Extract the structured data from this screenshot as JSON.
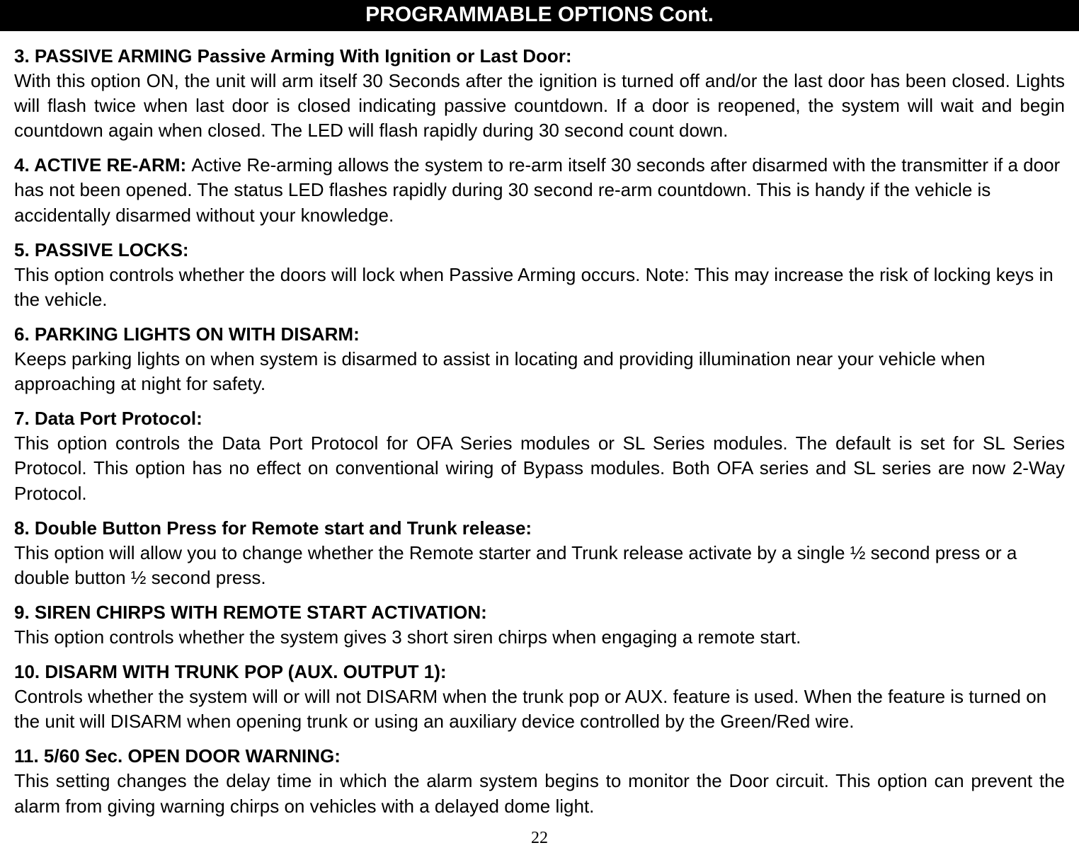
{
  "header": "PROGRAMMABLE OPTIONS Cont.",
  "page_number": "22",
  "sections": [
    {
      "heading": "3. PASSIVE ARMING Passive Arming With Ignition or Last Door:",
      "body": "With this option ON, the unit will arm itself 30 Seconds after the ignition is turned off and/or the last door has been closed.  Lights will flash twice when last door is closed indicating passive countdown.  If a door is reopened, the system will wait and begin countdown again when closed. The LED will flash rapidly during 30 second count down.",
      "justify": true,
      "inline_body": false
    },
    {
      "heading": "4. ACTIVE RE-ARM: ",
      "body": "Active Re-arming allows the system to re-arm itself 30 seconds after disarmed with the transmitter if a door has not been opened. The status LED flashes rapidly during 30 second re-arm countdown. This is handy if the vehicle is accidentally disarmed without your knowledge.",
      "justify": false,
      "inline_body": true
    },
    {
      "heading": "5. PASSIVE LOCKS:",
      "body": "This option controls whether the doors will lock when Passive Arming occurs.  Note: This may increase the risk of locking keys in the vehicle.",
      "justify": false,
      "inline_body": false
    },
    {
      "heading": "6. PARKING LIGHTS ON WITH DISARM:",
      "body": "Keeps parking lights on when system is disarmed to assist in locating and providing illumination near your vehicle when approaching at night for safety.",
      "justify": false,
      "inline_body": false
    },
    {
      "heading": "7. Data Port Protocol:",
      "body": "This option controls the Data Port Protocol for OFA Series modules or SL Series modules. The default is set for SL Series Protocol. This option has no effect on conventional wiring of Bypass modules. Both OFA series and SL series are now 2-Way Protocol.",
      "justify": true,
      "inline_body": false
    },
    {
      "heading": "8. Double Button Press for Remote start and Trunk release:",
      "body": " This option will allow you to change whether the Remote starter and Trunk release activate by a single ½  second press or a double button ½ second press.",
      "justify": false,
      "inline_body": false
    },
    {
      "heading": "9. SIREN CHIRPS WITH REMOTE START ACTIVATION:",
      "body": "This option controls whether the system gives 3 short siren chirps when engaging a remote start.",
      "justify": false,
      "inline_body": false
    },
    {
      "heading": "10. DISARM WITH TRUNK POP (AUX. OUTPUT 1):",
      "body": "Controls whether the system will or will not DISARM when the trunk pop or AUX. feature is used.  When the feature is turned on the unit will DISARM when opening trunk or using an auxiliary device controlled by the Green/Red wire.",
      "justify": false,
      "inline_body": false
    },
    {
      "heading": "11. 5/60 Sec. OPEN DOOR WARNING:",
      "body": "This setting changes the delay time in which the alarm system begins to monitor the Door circuit.  This option can prevent the alarm from giving warning chirps on vehicles with a delayed dome light.",
      "justify": true,
      "inline_body": false
    }
  ]
}
